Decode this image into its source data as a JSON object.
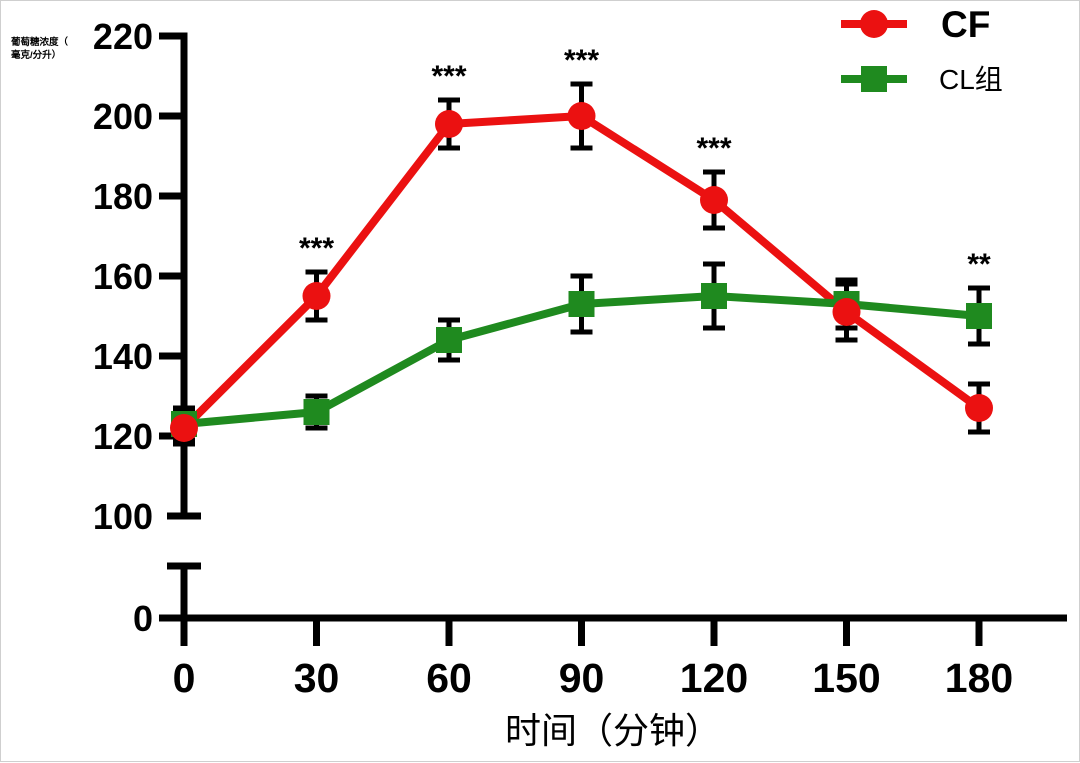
{
  "figure": {
    "background": "#ffffff",
    "border_color": "#cfcfcf",
    "axis_color": "#000000"
  },
  "chart_data": {
    "type": "line",
    "title": "",
    "xlabel": "时间（分钟）",
    "ylabel": "葡萄糖浓度（毫克/分升）",
    "ylabel_lines": [
      "葡萄糖浓度（",
      "毫克/分升）"
    ],
    "x": [
      0,
      30,
      60,
      90,
      120,
      150,
      180
    ],
    "x_ticks": [
      "0",
      "30",
      "60",
      "90",
      "120",
      "150",
      "180"
    ],
    "y_ticks": [
      100,
      120,
      140,
      160,
      180,
      200,
      220
    ],
    "y_zero_tick": "0",
    "xlim": [
      0,
      180
    ],
    "ylim": [
      100,
      220
    ],
    "axis_break": true,
    "grid": false,
    "legend_position": "top-right",
    "series": [
      {
        "name": "CF",
        "color": "#eb1111",
        "marker": "circle",
        "values": [
          122,
          155,
          198,
          200,
          179,
          151,
          127
        ],
        "errors": [
          4,
          6,
          6,
          8,
          7,
          7,
          6
        ]
      },
      {
        "name": "CL组",
        "color": "#1f8a1f",
        "marker": "square",
        "values": [
          123,
          126,
          144,
          153,
          155,
          153,
          150
        ],
        "errors": [
          4,
          4,
          5,
          7,
          8,
          6,
          7
        ]
      }
    ],
    "annotations": [
      {
        "x": 30,
        "text": "***",
        "series": "CF"
      },
      {
        "x": 60,
        "text": "***",
        "series": "CF"
      },
      {
        "x": 90,
        "text": "***",
        "series": "CF"
      },
      {
        "x": 120,
        "text": "***",
        "series": "CF"
      },
      {
        "x": 180,
        "text": "**",
        "series": "CL组"
      }
    ],
    "legend": [
      {
        "label": "CF",
        "bold": true
      },
      {
        "label": "CL组",
        "bold": false
      }
    ]
  }
}
